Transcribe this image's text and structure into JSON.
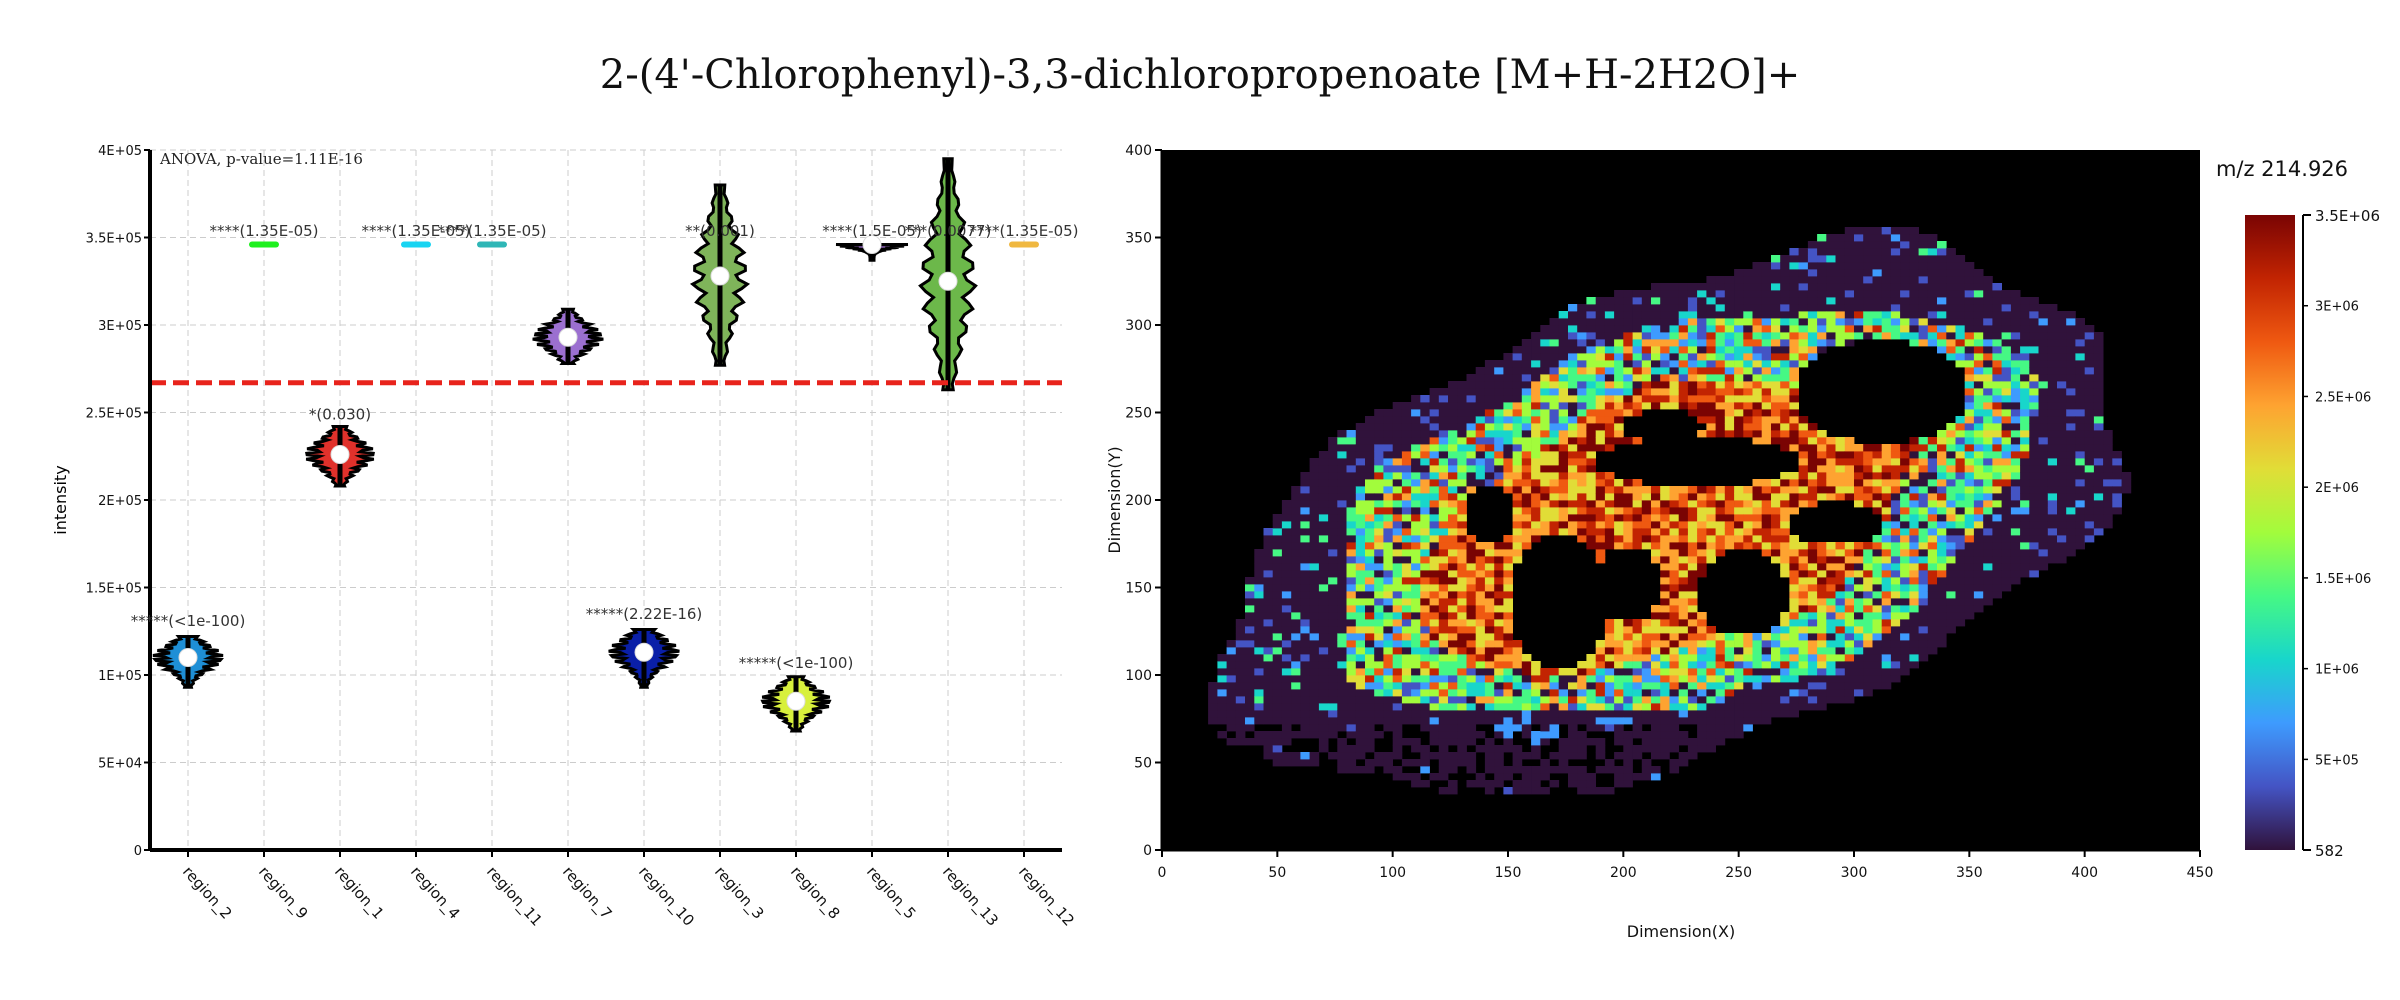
{
  "title": "2-(4'-Chlorophenyl)-3,3-dichloropropenoate [M+H-2H2O]+",
  "chart_data": [
    {
      "type": "violin",
      "annotation": "ANOVA, p-value=1.11E-16",
      "ylabel": "intensity",
      "xlabel": "",
      "ylim": [
        0,
        400000
      ],
      "yticks": [
        0,
        50000,
        100000,
        150000,
        200000,
        250000,
        300000,
        350000,
        400000
      ],
      "ytick_labels": [
        "0",
        "5E+04",
        "1E+05",
        "1.5E+05",
        "2E+05",
        "2.5E+05",
        "3E+05",
        "3.5E+05",
        "4E+05"
      ],
      "grid": true,
      "reference_line": 267000,
      "reference_line_color": "#e8231c",
      "categories": [
        "region_2",
        "region_9",
        "region_1",
        "region_4",
        "region_11",
        "region_7",
        "region_10",
        "region_3",
        "region_8",
        "region_5",
        "region_13",
        "region_12"
      ],
      "groups": [
        {
          "name": "region_2",
          "color": "#1e8fd6",
          "median": 110000,
          "min": 93000,
          "max": 122000,
          "label": "*****(<1e-100)",
          "label_y": 128000
        },
        {
          "name": "region_9",
          "color": "#1ef01e",
          "median": 346000,
          "min": 346000,
          "max": 346000,
          "label": "****(1.35E-05)",
          "label_y": 351000
        },
        {
          "name": "region_1",
          "color": "#e0312b",
          "median": 226000,
          "min": 208000,
          "max": 242000,
          "label": "*(0.030)",
          "label_y": 246000
        },
        {
          "name": "region_4",
          "color": "#19d4f2",
          "median": 346000,
          "min": 346000,
          "max": 346000,
          "label": "****(1.35E-05)",
          "label_y": 351000
        },
        {
          "name": "region_11",
          "color": "#2fb6b6",
          "median": 346000,
          "min": 346000,
          "max": 346000,
          "label": "****(1.35E-05)",
          "label_y": 351000
        },
        {
          "name": "region_7",
          "color": "#9b6fd0",
          "median": 293000,
          "min": 278000,
          "max": 309000,
          "label": "",
          "label_y": 0
        },
        {
          "name": "region_10",
          "color": "#0a1fa8",
          "median": 113000,
          "min": 93000,
          "max": 126000,
          "label": "*****(2.22E-16)",
          "label_y": 132000
        },
        {
          "name": "region_3",
          "color": "#7fb45a",
          "median": 328000,
          "min": 277000,
          "max": 380000,
          "label": "**(0.001)",
          "label_y": 351000
        },
        {
          "name": "region_8",
          "color": "#d8f03c",
          "median": 85000,
          "min": 68000,
          "max": 99000,
          "label": "*****(<1e-100)",
          "label_y": 104000
        },
        {
          "name": "region_5",
          "color": "#6a4a8a",
          "median": 346000,
          "min": 337000,
          "max": 346000,
          "label": "****(1.5E-05)",
          "label_y": 351000
        },
        {
          "name": "region_13",
          "color": "#6cb84a",
          "median": 325000,
          "min": 263000,
          "max": 395000,
          "label": "***(0.0077)",
          "label_y": 351000
        },
        {
          "name": "region_12",
          "color": "#f0b840",
          "median": 346000,
          "min": 346000,
          "max": 346000,
          "label": "****(1.35E-05)",
          "label_y": 351000
        }
      ]
    },
    {
      "type": "heatmap",
      "title": "m/z 214.926",
      "xlabel": "Dimension(X)",
      "ylabel": "Dimension(Y)",
      "xlim": [
        0,
        450
      ],
      "ylim": [
        0,
        400
      ],
      "xticks": [
        0,
        50,
        100,
        150,
        200,
        250,
        300,
        350,
        400,
        450
      ],
      "yticks": [
        0,
        50,
        100,
        150,
        200,
        250,
        300,
        350,
        400
      ],
      "colorbar": {
        "min": 582,
        "max": 3500000,
        "min_label": "582",
        "max_label": "3.5E+06",
        "tick_values": [
          500000,
          1000000,
          1500000,
          2000000,
          2500000,
          3000000
        ],
        "tick_labels": [
          "5E+05",
          "1E+06",
          "1.5E+06",
          "2E+06",
          "2.5E+06",
          "3E+06"
        ],
        "colormap": [
          "#30123b",
          "#4454c4",
          "#3e9bfe",
          "#18d6cb",
          "#46f884",
          "#a2fc3c",
          "#e1dd37",
          "#fea331",
          "#ef5911",
          "#c22402",
          "#7a0403"
        ]
      },
      "background": "#000000"
    }
  ]
}
